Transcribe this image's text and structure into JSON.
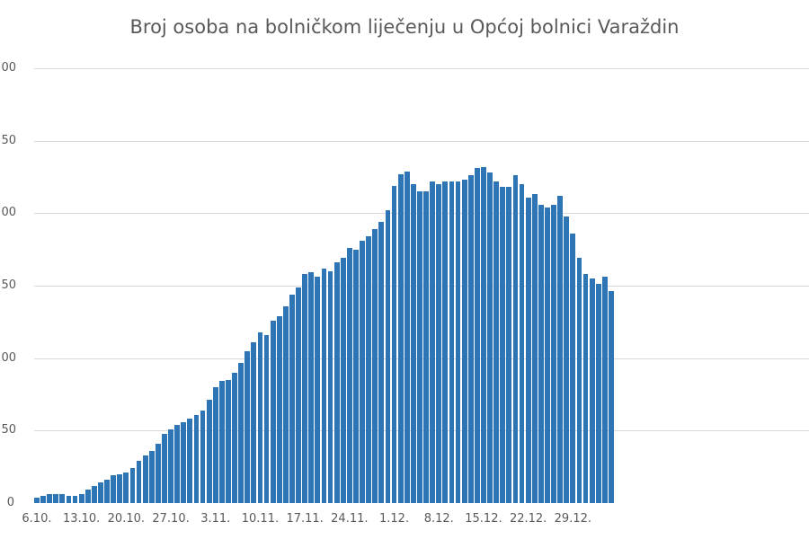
{
  "chart_data": {
    "type": "bar",
    "title": "Broj osoba na bolničkom liječenju u Općoj bolnici Varaždin",
    "xlabel": "",
    "ylabel": "",
    "ylim": [
      0,
      300
    ],
    "grid": true,
    "legend": null,
    "y_ticks": [
      "0",
      "50",
      "100",
      "150",
      "200",
      "250",
      "300"
    ],
    "y_tick_labels_visible": [
      "0",
      "50",
      "00",
      "50",
      "00",
      "50",
      "00"
    ],
    "x_tick_labels": [
      "6.10.",
      "13.10.",
      "20.10.",
      "27.10.",
      "3.11.",
      "10.11.",
      "17.11.",
      "24.11.",
      "1.12.",
      "8.12.",
      "15.12.",
      "22.12.",
      "29.12."
    ],
    "bar_color": "#2e75b6",
    "start_date": "6.10.",
    "values": [
      4,
      5,
      6,
      6,
      6,
      5,
      5,
      6,
      9,
      12,
      14,
      16,
      19,
      20,
      21,
      24,
      29,
      33,
      36,
      41,
      48,
      51,
      54,
      56,
      58,
      61,
      64,
      71,
      80,
      84,
      85,
      90,
      97,
      105,
      111,
      118,
      116,
      126,
      129,
      136,
      144,
      149,
      158,
      159,
      156,
      162,
      160,
      166,
      169,
      176,
      175,
      181,
      184,
      189,
      194,
      202,
      219,
      227,
      229,
      220,
      215,
      215,
      222,
      220,
      222,
      222,
      222,
      223,
      226,
      231,
      232,
      228,
      222,
      218,
      218,
      226,
      220,
      211,
      213,
      206,
      204,
      206,
      212,
      198,
      186,
      169,
      158,
      155,
      151,
      156,
      146
    ]
  }
}
